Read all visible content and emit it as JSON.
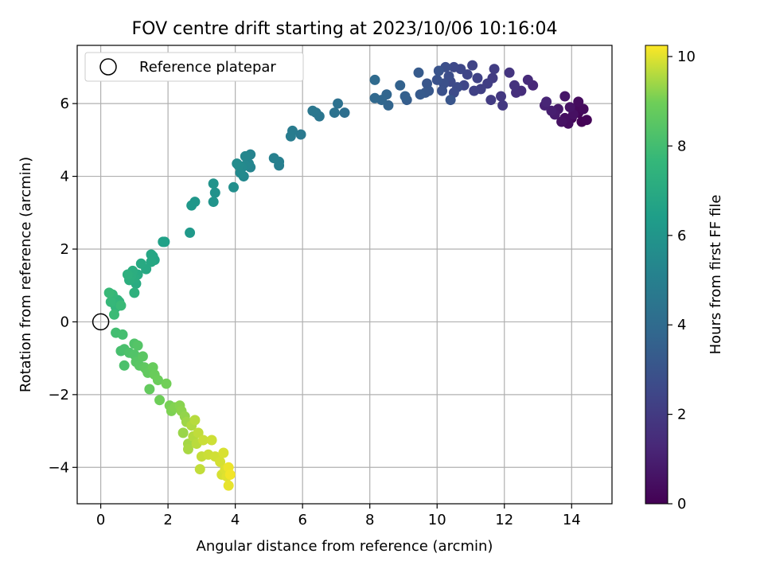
{
  "chart_data": {
    "type": "scatter",
    "title": "FOV centre drift starting at 2023/10/06 10:16:04",
    "xlabel": "Angular distance from reference (arcmin)",
    "ylabel": "Rotation from reference (arcmin)",
    "xlim": [
      -0.7,
      15.2
    ],
    "ylim": [
      -5.0,
      7.6
    ],
    "xticks": [
      0,
      2,
      4,
      6,
      8,
      10,
      12,
      14
    ],
    "yticks": [
      -4,
      -2,
      0,
      2,
      4,
      6
    ],
    "xtick_labels": [
      "0",
      "2",
      "4",
      "6",
      "8",
      "10",
      "12",
      "14"
    ],
    "ytick_labels": [
      "−4",
      "−2",
      "0",
      "2",
      "4",
      "6"
    ],
    "grid": true,
    "legend": {
      "placement": "top-left",
      "entries": [
        {
          "label": "Reference platepar",
          "marker": "open-circle",
          "color": "#000000"
        }
      ]
    },
    "reference_point": {
      "x": 0,
      "y": 0
    },
    "colorbar": {
      "label": "Hours from first FF file",
      "colormap": "viridis",
      "range": [
        0,
        10.25
      ],
      "ticks": [
        0,
        2,
        4,
        6,
        8,
        10
      ],
      "tick_labels": [
        "0",
        "2",
        "4",
        "6",
        "8",
        "10"
      ]
    },
    "points": [
      [
        14.3,
        5.5,
        0.05
      ],
      [
        14.45,
        5.55,
        0.1
      ],
      [
        14.2,
        5.75,
        0.15
      ],
      [
        14.0,
        5.6,
        0.2
      ],
      [
        14.15,
        5.9,
        0.25
      ],
      [
        14.35,
        5.85,
        0.3
      ],
      [
        14.2,
        6.05,
        0.35
      ],
      [
        13.9,
        5.45,
        0.4
      ],
      [
        13.8,
        5.6,
        0.45
      ],
      [
        14.05,
        5.7,
        0.5
      ],
      [
        13.7,
        5.5,
        0.55
      ],
      [
        13.95,
        5.9,
        0.6
      ],
      [
        13.8,
        6.2,
        0.7
      ],
      [
        13.6,
        5.85,
        0.8
      ],
      [
        13.5,
        5.7,
        0.9
      ],
      [
        13.4,
        5.8,
        1.0
      ],
      [
        13.2,
        5.95,
        1.1
      ],
      [
        13.25,
        6.05,
        1.2
      ],
      [
        12.85,
        6.5,
        1.3
      ],
      [
        12.7,
        6.65,
        1.4
      ],
      [
        12.5,
        6.35,
        1.5
      ],
      [
        12.35,
        6.3,
        1.6
      ],
      [
        12.3,
        6.5,
        1.7
      ],
      [
        12.15,
        6.85,
        1.8
      ],
      [
        11.9,
        6.2,
        1.9
      ],
      [
        11.95,
        5.95,
        1.95
      ],
      [
        11.6,
        6.1,
        2.0
      ],
      [
        11.65,
        6.7,
        2.05
      ],
      [
        11.7,
        6.95,
        2.1
      ],
      [
        11.5,
        6.55,
        2.15
      ],
      [
        11.3,
        6.4,
        2.2
      ],
      [
        11.1,
        6.35,
        2.25
      ],
      [
        11.2,
        6.7,
        2.3
      ],
      [
        11.05,
        7.05,
        2.35
      ],
      [
        10.9,
        6.8,
        2.4
      ],
      [
        10.8,
        6.5,
        2.45
      ],
      [
        10.7,
        6.95,
        2.5
      ],
      [
        10.5,
        7.0,
        2.55
      ],
      [
        10.4,
        6.6,
        2.6
      ],
      [
        10.6,
        6.45,
        2.65
      ],
      [
        10.5,
        6.3,
        2.7
      ],
      [
        10.35,
        6.75,
        2.75
      ],
      [
        10.25,
        7.0,
        2.8
      ],
      [
        10.2,
        6.55,
        2.85
      ],
      [
        10.15,
        6.35,
        2.9
      ],
      [
        10.0,
        6.65,
        2.95
      ],
      [
        10.05,
        6.9,
        3.0
      ],
      [
        10.4,
        6.1,
        3.05
      ],
      [
        9.7,
        6.55,
        3.1
      ],
      [
        9.75,
        6.35,
        3.15
      ],
      [
        9.65,
        6.3,
        3.2
      ],
      [
        9.5,
        6.25,
        3.25
      ],
      [
        9.45,
        6.85,
        3.3
      ],
      [
        9.1,
        6.1,
        3.4
      ],
      [
        9.05,
        6.2,
        3.5
      ],
      [
        8.9,
        6.5,
        3.6
      ],
      [
        8.55,
        5.95,
        3.7
      ],
      [
        8.5,
        6.25,
        3.75
      ],
      [
        8.35,
        6.1,
        3.8
      ],
      [
        8.15,
        6.15,
        3.9
      ],
      [
        8.15,
        6.65,
        4.0
      ],
      [
        7.25,
        5.75,
        4.2
      ],
      [
        7.05,
        6.0,
        4.3
      ],
      [
        6.95,
        5.75,
        4.35
      ],
      [
        6.5,
        5.65,
        4.5
      ],
      [
        6.4,
        5.75,
        4.55
      ],
      [
        6.3,
        5.8,
        4.6
      ],
      [
        5.95,
        5.15,
        4.7
      ],
      [
        5.7,
        5.25,
        4.8
      ],
      [
        5.65,
        5.1,
        4.85
      ],
      [
        5.3,
        4.3,
        4.95
      ],
      [
        5.3,
        4.4,
        5.0
      ],
      [
        5.15,
        4.5,
        5.05
      ],
      [
        4.45,
        4.6,
        5.15
      ],
      [
        4.45,
        4.25,
        5.2
      ],
      [
        4.4,
        4.35,
        5.25
      ],
      [
        4.3,
        4.55,
        5.3
      ],
      [
        4.3,
        4.3,
        5.35
      ],
      [
        4.25,
        4.0,
        5.4
      ],
      [
        4.2,
        4.25,
        5.45
      ],
      [
        4.15,
        4.1,
        5.5
      ],
      [
        4.1,
        4.3,
        5.55
      ],
      [
        4.05,
        4.35,
        5.6
      ],
      [
        3.95,
        3.7,
        5.7
      ],
      [
        3.4,
        3.55,
        5.85
      ],
      [
        3.35,
        3.8,
        5.9
      ],
      [
        3.35,
        3.3,
        5.95
      ],
      [
        2.8,
        3.3,
        6.1
      ],
      [
        2.7,
        3.2,
        6.15
      ],
      [
        2.65,
        2.45,
        6.2
      ],
      [
        1.9,
        2.2,
        6.5
      ],
      [
        1.85,
        2.2,
        6.55
      ],
      [
        1.6,
        1.7,
        6.7
      ],
      [
        1.55,
        1.8,
        6.75
      ],
      [
        1.5,
        1.85,
        6.8
      ],
      [
        1.5,
        1.65,
        6.85
      ],
      [
        1.35,
        1.45,
        6.9
      ],
      [
        1.2,
        1.6,
        6.95
      ],
      [
        1.1,
        1.3,
        7.0
      ],
      [
        1.05,
        1.05,
        7.05
      ],
      [
        1.0,
        1.2,
        7.1
      ],
      [
        0.95,
        1.4,
        7.15
      ],
      [
        0.9,
        1.25,
        7.2
      ],
      [
        0.85,
        1.15,
        7.25
      ],
      [
        0.8,
        1.3,
        7.3
      ],
      [
        1.0,
        0.8,
        7.35
      ],
      [
        0.55,
        0.55,
        7.45
      ],
      [
        0.5,
        0.6,
        7.5
      ],
      [
        0.45,
        0.4,
        7.55
      ],
      [
        0.4,
        0.5,
        7.6
      ],
      [
        0.35,
        0.75,
        7.65
      ],
      [
        0.3,
        0.55,
        7.7
      ],
      [
        0.25,
        0.8,
        7.75
      ],
      [
        0.6,
        0.45,
        7.8
      ],
      [
        0.4,
        0.2,
        7.85
      ],
      [
        0.45,
        -0.3,
        8.0
      ],
      [
        0.65,
        -0.35,
        8.05
      ],
      [
        0.6,
        -0.8,
        8.1
      ],
      [
        0.7,
        -0.75,
        8.15
      ],
      [
        0.7,
        -1.2,
        8.2
      ],
      [
        0.85,
        -0.85,
        8.25
      ],
      [
        1.0,
        -0.6,
        8.3
      ],
      [
        1.0,
        -0.9,
        8.35
      ],
      [
        1.1,
        -0.65,
        8.4
      ],
      [
        1.05,
        -1.1,
        8.45
      ],
      [
        1.15,
        -1.2,
        8.5
      ],
      [
        1.25,
        -0.95,
        8.55
      ],
      [
        1.3,
        -1.25,
        8.6
      ],
      [
        1.35,
        -1.3,
        8.65
      ],
      [
        1.4,
        -1.4,
        8.7
      ],
      [
        1.45,
        -1.85,
        8.75
      ],
      [
        1.55,
        -1.25,
        8.8
      ],
      [
        1.6,
        -1.45,
        8.85
      ],
      [
        1.7,
        -1.6,
        8.9
      ],
      [
        1.75,
        -2.15,
        8.95
      ],
      [
        1.95,
        -1.7,
        9.0
      ],
      [
        2.05,
        -2.3,
        9.05
      ],
      [
        2.1,
        -2.45,
        9.1
      ],
      [
        2.2,
        -2.35,
        9.15
      ],
      [
        2.35,
        -2.3,
        9.2
      ],
      [
        2.4,
        -2.45,
        9.25
      ],
      [
        2.5,
        -2.6,
        9.3
      ],
      [
        2.45,
        -3.05,
        9.35
      ],
      [
        2.55,
        -2.75,
        9.4
      ],
      [
        2.6,
        -3.35,
        9.45
      ],
      [
        2.6,
        -3.5,
        9.5
      ],
      [
        2.7,
        -2.85,
        9.55
      ],
      [
        2.75,
        -3.15,
        9.6
      ],
      [
        2.8,
        -2.7,
        9.62
      ],
      [
        2.85,
        -3.35,
        9.65
      ],
      [
        2.9,
        -3.05,
        9.7
      ],
      [
        2.95,
        -4.05,
        9.72
      ],
      [
        3.0,
        -3.7,
        9.75
      ],
      [
        3.05,
        -3.25,
        9.78
      ],
      [
        3.2,
        -3.65,
        9.8
      ],
      [
        3.3,
        -3.25,
        9.82
      ],
      [
        3.4,
        -3.7,
        9.85
      ],
      [
        3.55,
        -3.85,
        9.88
      ],
      [
        3.6,
        -4.2,
        9.9
      ],
      [
        3.65,
        -3.6,
        9.92
      ],
      [
        3.7,
        -4.05,
        9.95
      ],
      [
        3.75,
        -4.25,
        9.98
      ],
      [
        3.8,
        -4.5,
        10.05
      ],
      [
        3.8,
        -4.0,
        10.1
      ],
      [
        3.85,
        -4.2,
        10.15
      ]
    ]
  }
}
